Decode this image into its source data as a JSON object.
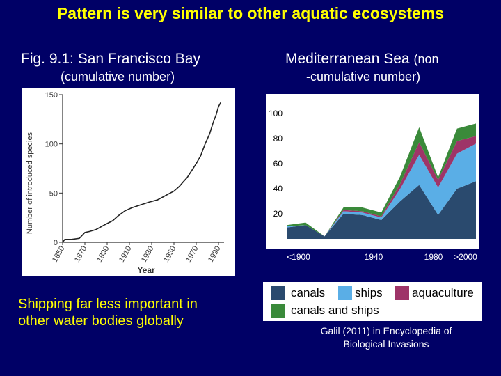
{
  "slide": {
    "title": "Pattern is very similar to other aquatic ecosystems",
    "left_heading": "Fig. 9.1: San Francisco Bay",
    "left_subheading": "(cumulative number)",
    "right_heading_main": "Mediterranean Sea",
    "right_heading_small": "(non",
    "right_subheading": "-cumulative number)",
    "bottom_text_line1": "Shipping far less important in",
    "bottom_text_line2": "other water bodies globally",
    "citation_line1": "Galil (2011) in Encyclopedia of",
    "citation_line2": "Biological Invasions"
  },
  "legend": {
    "items": [
      {
        "label": "canals",
        "color": "#2a4a6e"
      },
      {
        "label": "ships",
        "color": "#5aaee6"
      },
      {
        "label": "aquaculture",
        "color": "#9e3468"
      },
      {
        "label": "canals and ships",
        "color": "#3a8a3a"
      }
    ]
  },
  "chart_data": [
    {
      "type": "line",
      "title": "",
      "xlabel": "Year",
      "ylabel": "Number of introduced species",
      "xlim": [
        1850,
        1995
      ],
      "ylim": [
        0,
        150
      ],
      "x_ticks": [
        "1850",
        "1870",
        "1890",
        "1910",
        "1930",
        "1950",
        "1970",
        "1990"
      ],
      "y_ticks": [
        "0",
        "50",
        "100",
        "150"
      ],
      "x": [
        1850,
        1852,
        1858,
        1865,
        1870,
        1874,
        1880,
        1888,
        1895,
        1900,
        1906,
        1912,
        1920,
        1928,
        1935,
        1940,
        1945,
        1950,
        1955,
        1958,
        1962,
        1966,
        1970,
        1974,
        1978,
        1982,
        1985,
        1988,
        1990,
        1992
      ],
      "y": [
        0,
        3,
        3,
        4,
        10,
        11,
        13,
        18,
        22,
        27,
        32,
        35,
        38,
        41,
        43,
        46,
        49,
        52,
        57,
        61,
        66,
        73,
        80,
        88,
        100,
        110,
        121,
        130,
        138,
        142
      ]
    },
    {
      "type": "area",
      "title": "",
      "xlabel": "",
      "ylabel": "",
      "ylim": [
        0,
        110
      ],
      "y_ticks": [
        "20",
        "40",
        "60",
        "80",
        "100"
      ],
      "x_ticks": [
        "<1900",
        "1940",
        "1980",
        ">2000"
      ],
      "x": [
        "<1900",
        "1910",
        "1920",
        "1930",
        "1940",
        "1950",
        "1960",
        "1970",
        "1980",
        "1990",
        ">2000"
      ],
      "series": [
        {
          "name": "canals",
          "values": [
            9,
            11,
            2,
            20,
            19,
            15,
            30,
            43,
            19,
            40,
            46
          ]
        },
        {
          "name": "ships",
          "values": [
            1,
            0,
            0,
            2,
            2,
            2,
            10,
            24,
            22,
            28,
            30
          ]
        },
        {
          "name": "aquaculture",
          "values": [
            0,
            0,
            0,
            1,
            1,
            1,
            4,
            10,
            6,
            10,
            6
          ]
        },
        {
          "name": "canals and ships",
          "values": [
            1,
            2,
            0,
            2,
            3,
            3,
            6,
            12,
            2,
            10,
            10
          ]
        }
      ]
    }
  ]
}
